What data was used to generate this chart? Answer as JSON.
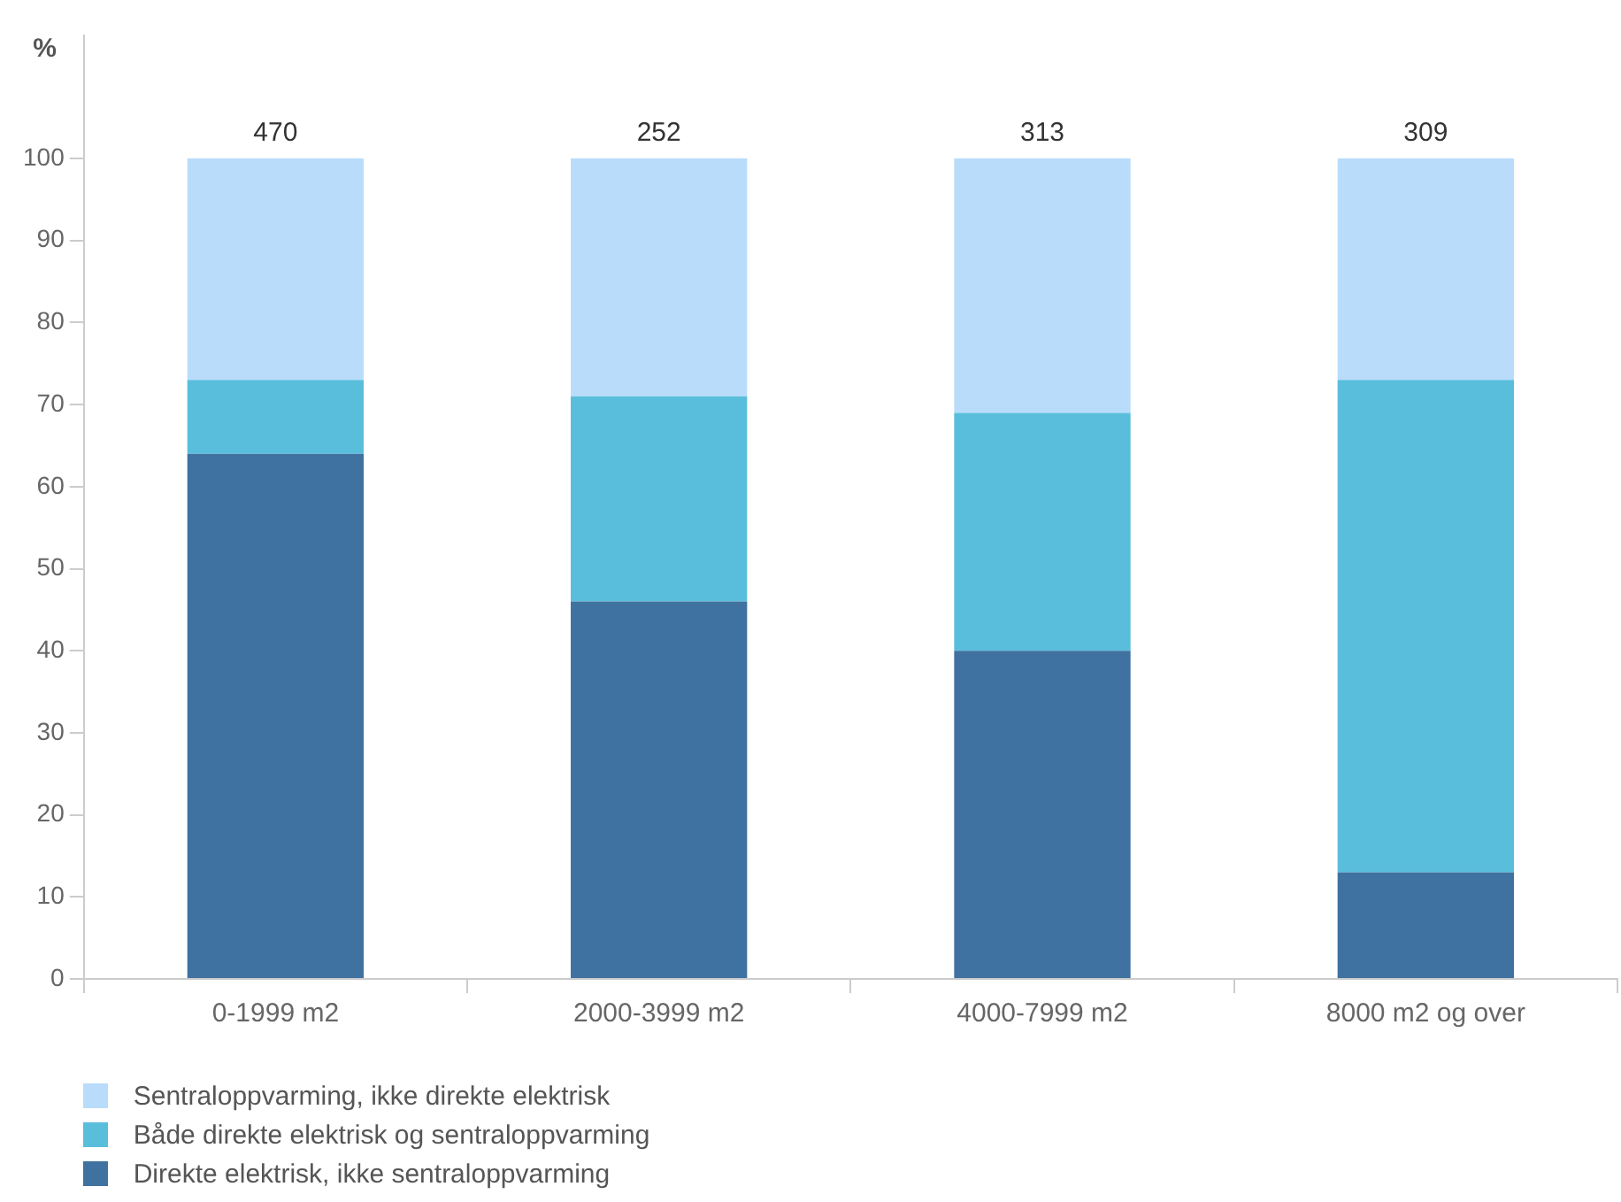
{
  "chart_data": {
    "type": "bar",
    "stacked": true,
    "ylabel": "%",
    "categories": [
      "0-1999 m2",
      "2000-3999 m2",
      "4000-7999 m2",
      "8000 m2 og over"
    ],
    "series": [
      {
        "name": "Direkte elektrisk, ikke sentraloppvarming",
        "color": "#3f72a0",
        "values": [
          64,
          46,
          40,
          13
        ]
      },
      {
        "name": "Både direkte elektrisk og sentraloppvarming",
        "color": "#59bedb",
        "values": [
          9,
          25,
          29,
          60
        ]
      },
      {
        "name": "Sentraloppvarming, ikke direkte elektrisk",
        "color": "#b9dcfb",
        "values": [
          27,
          29,
          31,
          27
        ]
      }
    ],
    "annotations": [
      {
        "text": "470",
        "x": "0-1999 m2",
        "y": 100
      },
      {
        "text": "252",
        "x": "2000-3999 m2",
        "y": 100
      },
      {
        "text": "313",
        "x": "4000-7999 m2",
        "y": 100
      },
      {
        "text": "309",
        "x": "8000 m2 og over",
        "y": 100
      }
    ],
    "ylim": [
      0,
      115
    ],
    "yticks": [
      0,
      10,
      20,
      30,
      40,
      50,
      60,
      70,
      80,
      90,
      100
    ],
    "grid": false,
    "legend": "bottom left"
  }
}
